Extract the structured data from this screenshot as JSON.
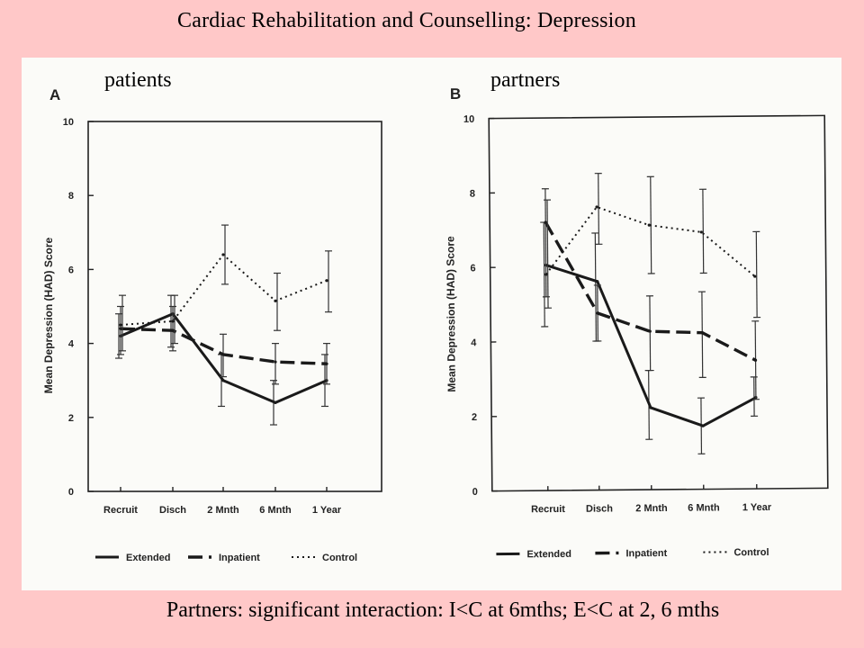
{
  "slide_title": "Cardiac Rehabilitation and Counselling: Depression",
  "caption": "Partners: significant interaction: I<C at 6mths;  E<C at 2, 6 mths",
  "labels": {
    "left": "patients",
    "right": "partners"
  },
  "chart_data": [
    {
      "type": "line",
      "panel": "A",
      "group_label": "patients",
      "ylabel": "Mean Depression (HAD) Score",
      "xlabel": "",
      "categories": [
        "Recruit",
        "Disch",
        "2 Mnth",
        "6 Mnth",
        "1 Year"
      ],
      "ylim": [
        0,
        10
      ],
      "yticks": [
        0,
        2,
        4,
        6,
        8,
        10
      ],
      "legend_position": "bottom",
      "series": [
        {
          "name": "Extended",
          "style": "solid",
          "values": [
            4.2,
            4.8,
            3.0,
            2.4,
            3.0
          ],
          "err_low": [
            3.6,
            3.9,
            2.3,
            1.8,
            2.3
          ],
          "err_high": [
            4.8,
            5.3,
            3.7,
            3.0,
            3.7
          ]
        },
        {
          "name": "Inpatient",
          "style": "dashed",
          "values": [
            4.4,
            4.35,
            3.7,
            3.5,
            3.45
          ],
          "err_low": [
            3.7,
            3.8,
            3.1,
            2.9,
            2.9
          ],
          "err_high": [
            5.0,
            5.0,
            4.25,
            4.0,
            4.0
          ]
        },
        {
          "name": "Control",
          "style": "dotted",
          "values": [
            4.5,
            4.6,
            6.4,
            5.15,
            5.7
          ],
          "err_low": [
            3.8,
            4.0,
            5.6,
            4.35,
            4.85
          ],
          "err_high": [
            5.3,
            5.3,
            7.2,
            5.9,
            6.5
          ]
        }
      ]
    },
    {
      "type": "line",
      "panel": "B",
      "group_label": "partners",
      "ylabel": "Mean Depression (HAD) Score",
      "xlabel": "",
      "categories": [
        "Recruit",
        "Disch",
        "2 Mnth",
        "6 Mnth",
        "1 Year"
      ],
      "ylim": [
        0,
        10
      ],
      "yticks": [
        0,
        2,
        4,
        6,
        8,
        10
      ],
      "legend_position": "bottom",
      "series": [
        {
          "name": "Extended",
          "style": "solid",
          "values": [
            6.05,
            5.6,
            2.2,
            1.7,
            2.45
          ],
          "err_low": [
            4.4,
            4.0,
            1.35,
            0.95,
            1.95
          ],
          "err_high": [
            7.2,
            6.9,
            3.2,
            2.45,
            3.0
          ]
        },
        {
          "name": "Inpatient",
          "style": "dashed",
          "values": [
            7.2,
            4.75,
            4.25,
            4.2,
            3.45
          ],
          "err_low": [
            5.2,
            4.0,
            3.2,
            3.0,
            2.4
          ],
          "err_high": [
            8.1,
            5.5,
            5.2,
            5.3,
            4.5
          ]
        },
        {
          "name": "Control",
          "style": "dotted",
          "values": [
            5.8,
            7.6,
            7.1,
            6.9,
            5.7
          ],
          "err_low": [
            4.9,
            6.6,
            5.8,
            5.8,
            4.6
          ],
          "err_high": [
            7.8,
            8.5,
            8.4,
            8.05,
            6.9
          ]
        }
      ]
    }
  ]
}
